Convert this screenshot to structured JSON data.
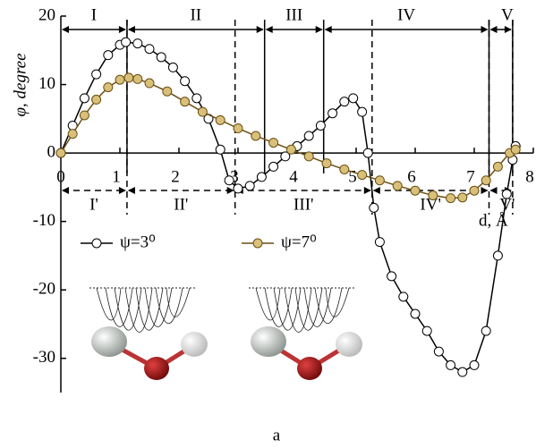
{
  "chart_data": {
    "type": "line",
    "ylabel": "φ, degree",
    "xlabel": "d, Å",
    "xlim": [
      0,
      8
    ],
    "ylim": [
      -35,
      20
    ],
    "xticks": [
      0,
      1,
      2,
      3,
      4,
      5,
      6,
      7,
      8
    ],
    "yticks": [
      -30,
      -20,
      -10,
      0,
      10,
      20
    ],
    "series": [
      {
        "name": "ψ=3⁰",
        "color": "#000000",
        "marker_fill": "#ffffff",
        "x": [
          0,
          0.2,
          0.4,
          0.6,
          0.8,
          1.0,
          1.1,
          1.3,
          1.5,
          1.7,
          1.9,
          2.1,
          2.3,
          2.5,
          2.7,
          2.85,
          3.0,
          3.2,
          3.4,
          3.6,
          3.8,
          4.0,
          4.2,
          4.4,
          4.6,
          4.8,
          4.95,
          5.1,
          5.2,
          5.3,
          5.4,
          5.6,
          5.8,
          6.0,
          6.2,
          6.4,
          6.6,
          6.8,
          7.0,
          7.2,
          7.4,
          7.55,
          7.65,
          7.7
        ],
        "values": [
          0,
          4,
          8,
          11.5,
          14.3,
          15.8,
          16.2,
          16,
          15.2,
          14,
          12.5,
          10.5,
          8,
          5,
          0.5,
          -4,
          -5.2,
          -4.8,
          -3.5,
          -2,
          -0.5,
          1,
          2.5,
          4,
          5.8,
          7.5,
          8,
          6,
          0,
          -8,
          -13,
          -18,
          -21,
          -23.5,
          -26,
          -29,
          -31,
          -32,
          -31,
          -26,
          -15,
          -6,
          -1,
          1
        ]
      },
      {
        "name": "ψ=7⁰",
        "color": "#6b4e12",
        "marker_fill": "#d9c07a",
        "x": [
          0,
          0.2,
          0.4,
          0.6,
          0.8,
          1.0,
          1.15,
          1.3,
          1.5,
          1.8,
          2.1,
          2.4,
          2.7,
          3.0,
          3.3,
          3.6,
          3.9,
          4.2,
          4.5,
          4.8,
          5.1,
          5.4,
          5.7,
          6.0,
          6.3,
          6.6,
          6.8,
          7.0,
          7.2,
          7.4,
          7.6,
          7.7
        ],
        "values": [
          0,
          2.8,
          5.5,
          7.8,
          9.6,
          10.7,
          11,
          10.8,
          10.2,
          9,
          7.5,
          6,
          4.8,
          3.6,
          2.5,
          1.5,
          0.5,
          -0.5,
          -1.5,
          -2.4,
          -3.2,
          -4,
          -4.8,
          -5.5,
          -6.2,
          -6.6,
          -6.5,
          -5.5,
          -4,
          -2,
          0,
          0.5
        ]
      }
    ],
    "upper_regions": [
      {
        "label": "I",
        "from": 0,
        "to": 1.12
      },
      {
        "label": "II",
        "from": 1.12,
        "to": 3.45
      },
      {
        "label": "III",
        "from": 3.45,
        "to": 4.45
      },
      {
        "label": "IV",
        "from": 4.45,
        "to": 7.25
      },
      {
        "label": "V",
        "from": 7.25,
        "to": 7.65
      }
    ],
    "lower_regions": [
      {
        "label": "I'",
        "from": 0,
        "to": 1.12
      },
      {
        "label": "II'",
        "from": 1.12,
        "to": 2.95
      },
      {
        "label": "III'",
        "from": 2.95,
        "to": 5.27
      },
      {
        "label": "IV'",
        "from": 5.27,
        "to": 7.25
      },
      {
        "label": "V'",
        "from": 7.25,
        "to": 7.65
      }
    ]
  },
  "caption": "a"
}
